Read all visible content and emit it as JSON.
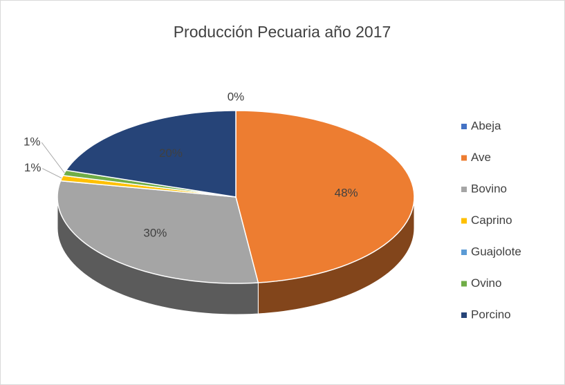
{
  "chart_data": {
    "type": "pie",
    "title": "Producción Pecuaria año  2017",
    "categories": [
      "Abeja",
      "Ave",
      "Bovino",
      "Caprino",
      "Guajolote",
      "Ovino",
      "Porcino"
    ],
    "values": [
      0,
      48,
      30,
      1,
      0,
      1,
      20
    ],
    "value_labels": [
      "0%",
      "48%",
      "30%",
      "1%",
      null,
      "1%",
      "20%"
    ],
    "colors": [
      "#4472c4",
      "#ed7d31",
      "#a5a5a5",
      "#ffc000",
      "#5b9bd5",
      "#70ad47",
      "#264478"
    ],
    "legend": "right"
  }
}
